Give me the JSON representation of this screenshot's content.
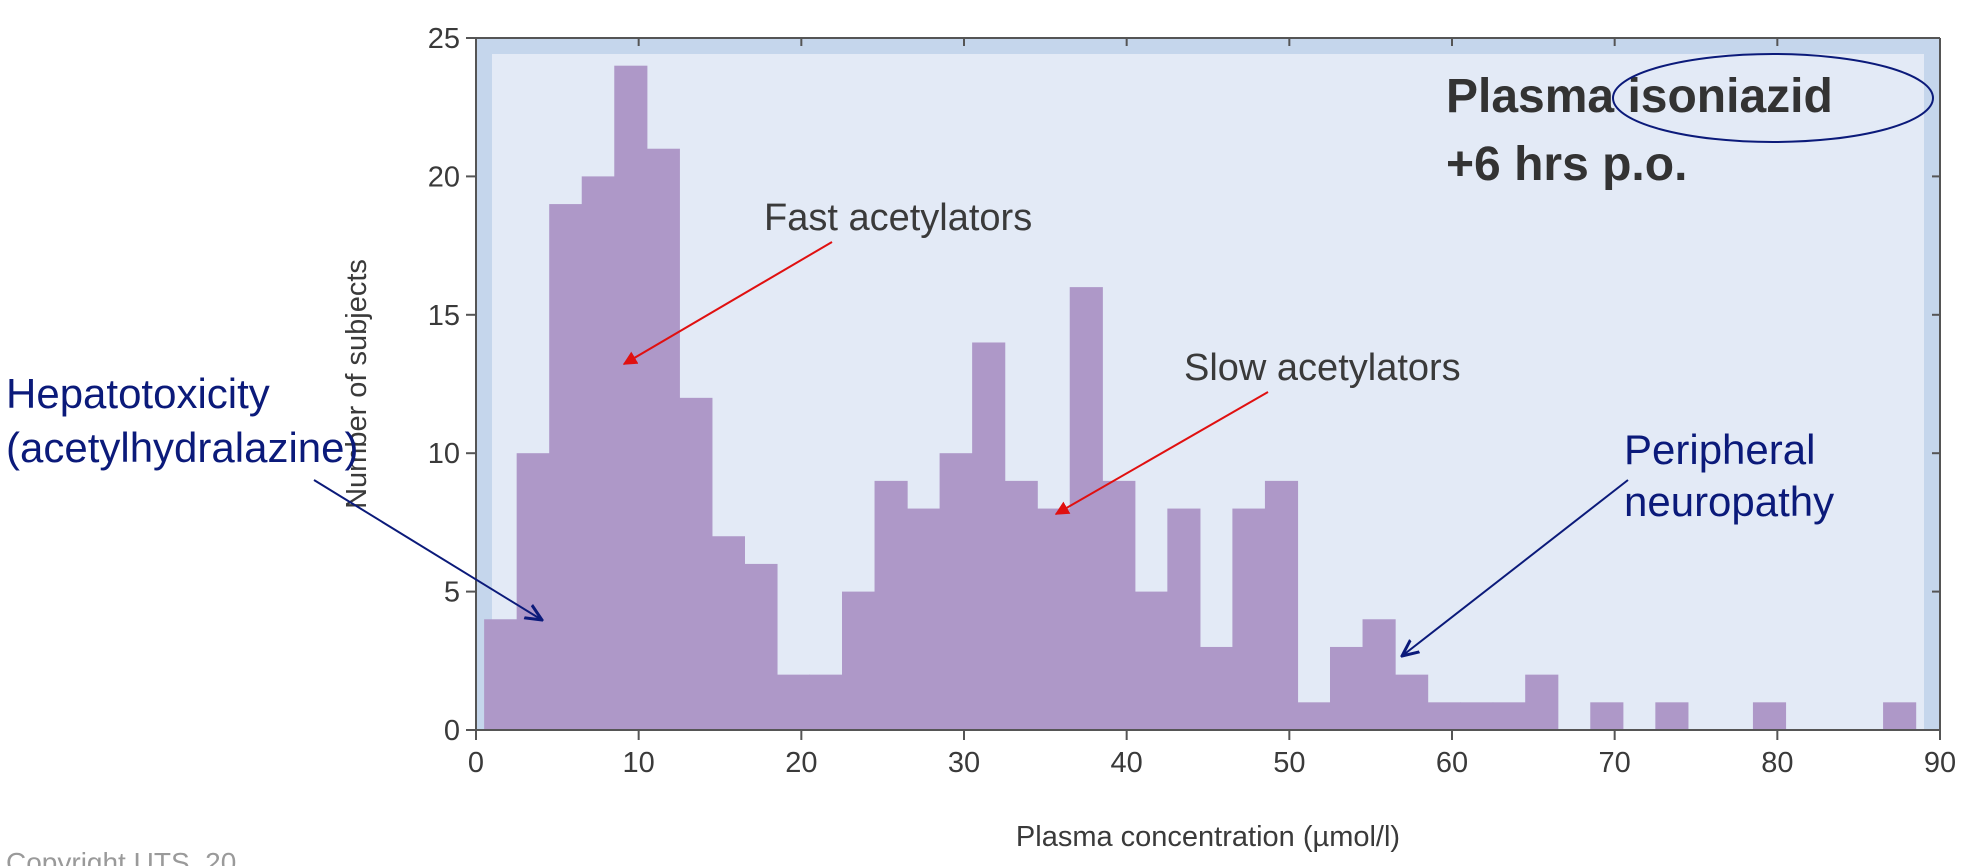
{
  "chart_data": {
    "type": "bar",
    "title": "Plasma isoniazid",
    "subtitle": "+6 hrs p.o.",
    "xlabel": "Plasma concentration (µmol/l)",
    "ylabel": "Number of subjects",
    "xlim": [
      0,
      90
    ],
    "ylim": [
      0,
      25
    ],
    "x_ticks": [
      "0",
      "10",
      "20",
      "30",
      "40",
      "50",
      "60",
      "70",
      "80",
      "90"
    ],
    "y_ticks": [
      "0",
      "5",
      "10",
      "15",
      "20",
      "25"
    ],
    "bin_width": 2,
    "bin_starts": [
      0.5,
      2.5,
      4.5,
      6.5,
      8.5,
      10.5,
      12.5,
      14.5,
      16.5,
      18.5,
      20.5,
      22.5,
      24.5,
      26.5,
      28.5,
      30.5,
      32.5,
      34.5,
      36.5,
      38.5,
      40.5,
      42.5,
      44.5,
      46.5,
      48.5,
      50.5,
      52.5,
      54.5,
      56.5,
      58.5,
      60.5,
      62.5,
      64.5,
      66.5,
      68.5,
      70.5,
      72.5,
      74.5,
      76.5,
      78.5,
      80.5,
      82.5,
      84.5,
      86.5
    ],
    "values": [
      4,
      10,
      19,
      20,
      24,
      21,
      12,
      7,
      6,
      2,
      2,
      5,
      9,
      8,
      10,
      14,
      9,
      8,
      16,
      9,
      5,
      8,
      3,
      8,
      9,
      1,
      3,
      4,
      2,
      1,
      1,
      1,
      2,
      0,
      1,
      0,
      1,
      0,
      0,
      1,
      0,
      0,
      0,
      1
    ],
    "bar_color": "#ae98c8",
    "plot_background": "#e3eaf6",
    "frame_color": "#c5d6ec",
    "grid": false,
    "annotations": {
      "fast": "Fast acetylators",
      "slow": "Slow acetylators",
      "hepato_line1": "Hepatotoxicity",
      "hepato_line2": "(acetylhydralazine)",
      "neuro_line1": "Peripheral",
      "neuro_line2": "neuropathy"
    },
    "annotation_colors": {
      "red_arrow": "#e01010",
      "blue_text": "#0b1a7a"
    }
  },
  "footer": {
    "copyright": "Copyright UTS, 20"
  }
}
